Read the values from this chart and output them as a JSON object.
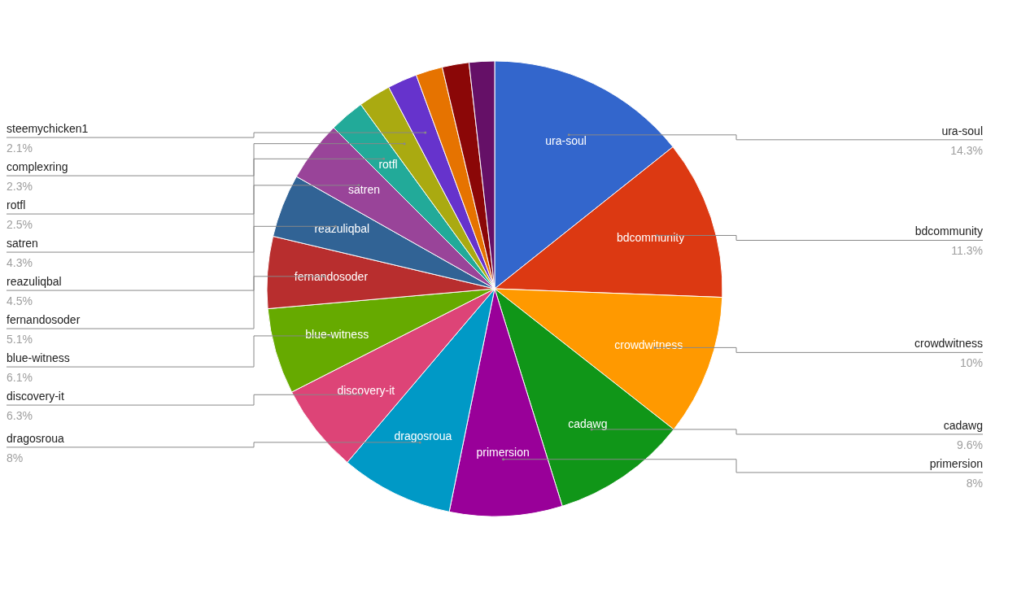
{
  "chart_data": {
    "type": "pie",
    "categories": [
      "ura-soul",
      "bdcommunity",
      "crowdwitness",
      "cadawg",
      "primersion",
      "dragosroua",
      "discovery-it",
      "blue-witness",
      "fernandosoder",
      "reazuliqbal",
      "satren",
      "rotfl",
      "complexring",
      "steemychicken1",
      null,
      null,
      null
    ],
    "values": [
      14.3,
      11.3,
      10,
      9.6,
      8,
      8,
      6.3,
      6.1,
      5.1,
      4.5,
      4.3,
      2.5,
      2.3,
      2.1,
      1.9,
      1.9,
      1.8
    ],
    "value_labels": [
      "14.3%",
      "11.3%",
      "10%",
      "9.6%",
      "8%",
      "8%",
      "6.3%",
      "6.1%",
      "5.1%",
      "4.5%",
      "4.3%",
      "2.5%",
      "2.3%",
      "2.1%",
      null,
      null,
      null
    ],
    "colors": [
      "#3366cc",
      "#dc3912",
      "#ff9900",
      "#109618",
      "#990099",
      "#0099c6",
      "#dd4477",
      "#66aa00",
      "#b82e2e",
      "#316395",
      "#994499",
      "#22aa99",
      "#aaaa11",
      "#6633cc",
      "#e67300",
      "#8b0707",
      "#651067"
    ]
  }
}
